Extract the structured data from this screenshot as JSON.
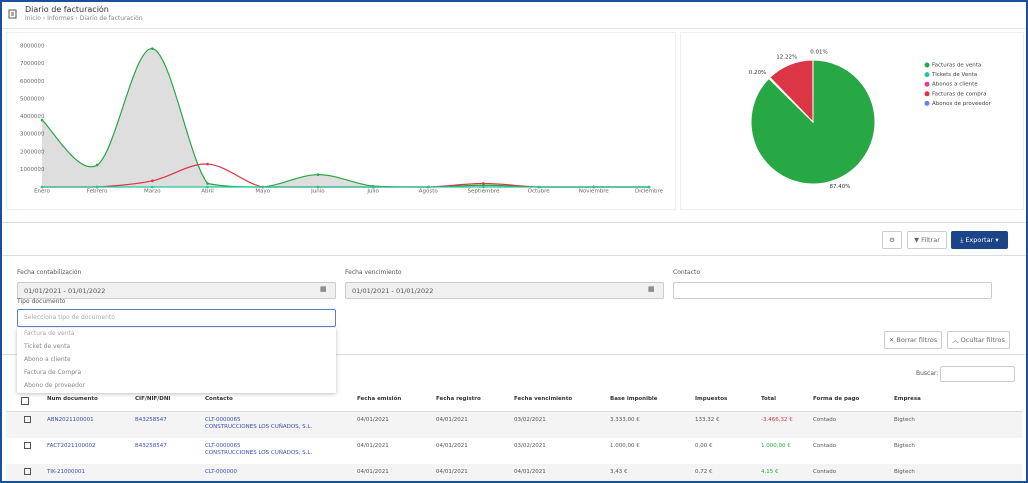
{
  "header": {
    "title": "Diario de facturación",
    "breadcrumb": [
      "Inicio",
      "Informes",
      "Diario de facturación"
    ]
  },
  "chart_data": [
    {
      "type": "line",
      "categories": [
        "Enero",
        "Febrero",
        "Marzo",
        "Abril",
        "Mayo",
        "Junio",
        "Julio",
        "Agosto",
        "Septiembre",
        "Octubre",
        "Noviembre",
        "Diciembre"
      ],
      "ylim": [
        0,
        8000000
      ],
      "yticks": [
        1000000,
        2000000,
        3000000,
        4000000,
        5000000,
        6000000,
        7000000,
        8000000
      ],
      "series": [
        {
          "color": "#28a745",
          "fill": "rgba(0,0,0,0.13)",
          "values": [
            3800000,
            1250000,
            7850000,
            200000,
            0,
            700000,
            50000,
            0,
            100000,
            0,
            0,
            0
          ]
        },
        {
          "color": "#dc3545",
          "values": [
            0,
            0,
            350000,
            1300000,
            0,
            0,
            0,
            0,
            200000,
            0,
            0,
            0
          ]
        },
        {
          "color": "#20c997",
          "values": [
            0,
            0,
            0,
            0,
            0,
            0,
            0,
            0,
            0,
            0,
            0,
            0
          ]
        }
      ]
    },
    {
      "type": "pie",
      "categories": [
        "Facturas de venta",
        "Tickets de Venta",
        "Abonos a cliente",
        "Facturas de compra",
        "Abonos de proveedor"
      ],
      "colors": [
        "#28a745",
        "#20c997",
        "#e83e8c",
        "#dc3545",
        "#6f7fe0"
      ],
      "values": [
        87.4,
        0.2,
        0.17,
        12.22,
        0.01
      ],
      "value_labels": [
        "87.40%",
        "0.20%",
        null,
        "12.22%",
        "0.01%"
      ]
    }
  ],
  "toolbar": {
    "filter": "Filtrar",
    "export": "Exportar"
  },
  "filters": {
    "fields": [
      {
        "label": "Fecha contabilización",
        "value": "01/01/2021 - 01/01/2022"
      },
      {
        "label": "Fecha vencimiento",
        "value": "01/01/2021 - 01/01/2022"
      },
      {
        "label": "Contacto"
      }
    ],
    "document_type": {
      "label": "Tipo documento",
      "placeholder": "Selecciona tipo de documento",
      "options": [
        "Factura de venta",
        "Ticket de venta",
        "Abono a cliente",
        "Factura de Compra",
        "Abono de proveedor"
      ]
    },
    "buttons": [
      "Borrar filtros",
      "Ocultar filtros"
    ]
  },
  "search": {
    "label": "Buscar:"
  },
  "table": {
    "columns": [
      "Num documento",
      "CIF/NIF/DNI",
      "Contacto",
      "Fecha emisión",
      "Fecha registro",
      "Fecha vencimiento",
      "Base imponible",
      "Impuestos",
      "Total",
      "Forma de pago",
      "Empresa"
    ],
    "rows": [
      {
        "num": "ABN2021100001",
        "cif": "B43258547",
        "contact_code": "CLT-0000065",
        "contact_name": "CONSTRUCCIONES LOS CUÑADOS, S.L.",
        "emision": "04/01/2021",
        "registro": "04/01/2021",
        "vencimiento": "03/02/2021",
        "base": "3.333,00 €",
        "impuestos": "133,32 €",
        "total": "-3.466,32 €",
        "total_color": "#dc3545",
        "pago": "Contado",
        "empresa": "Bigtech"
      },
      {
        "num": "FACT2021100002",
        "cif": "B43258547",
        "contact_code": "CLT-0000065",
        "contact_name": "CONSTRUCCIONES LOS CUÑADOS, S.L.",
        "emision": "04/01/2021",
        "registro": "04/01/2021",
        "vencimiento": "03/02/2021",
        "base": "1.000,00 €",
        "impuestos": "0,00 €",
        "total": "1.000,00 €",
        "total_color": "#28a745",
        "pago": "Contado",
        "empresa": "Bigtech"
      },
      {
        "num": "TIK-21000001",
        "contact_code": "CLT-000000",
        "emision": "04/01/2021",
        "registro": "04/01/2021",
        "vencimiento": "04/01/2021",
        "base": "3,43 €",
        "impuestos": "0,72 €",
        "total": "4,15 €",
        "total_color": "#28a745",
        "pago": "Contado",
        "empresa": "Bigtech"
      }
    ]
  }
}
